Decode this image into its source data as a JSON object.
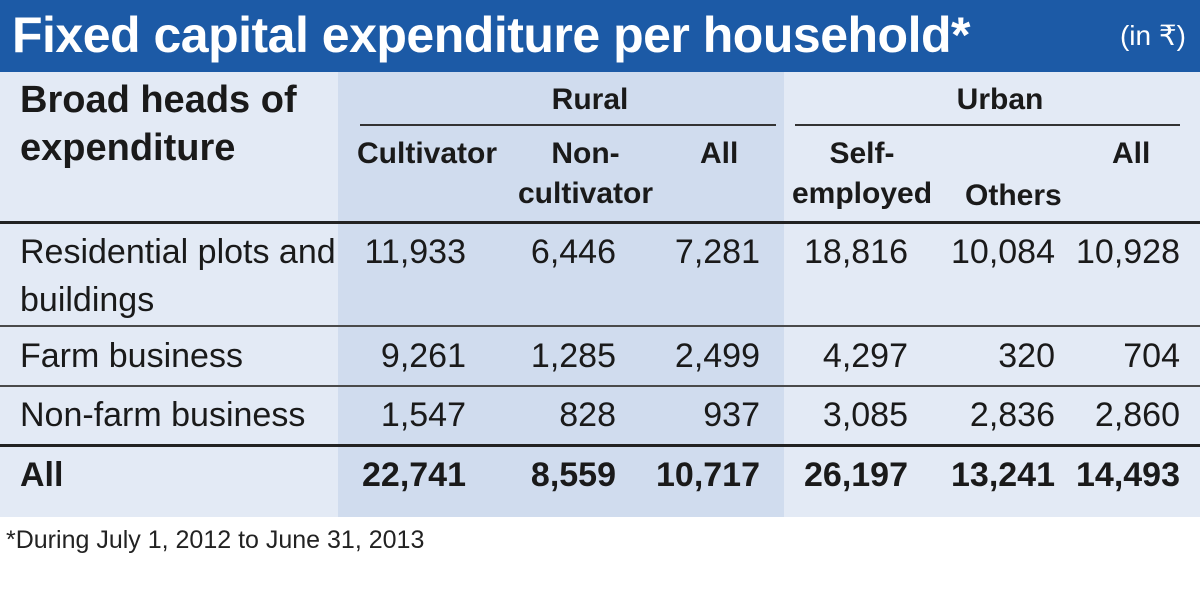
{
  "title": "Fixed capital expenditure per household*",
  "unit": "(in ₹)",
  "table": {
    "stub_header": "Broad heads of expenditure",
    "groups": [
      "Rural",
      "Urban"
    ],
    "columns": [
      "Cultivator",
      "Non-cultivator",
      "All",
      "Self-employed",
      "Others",
      "All"
    ],
    "rows": [
      {
        "label": "Residential plots and buildings",
        "values": [
          "11,933",
          "6,446",
          "7,281",
          "18,816",
          "10,084",
          "10,928"
        ]
      },
      {
        "label": "Farm business",
        "values": [
          "9,261",
          "1,285",
          "2,499",
          "4,297",
          "320",
          "704"
        ]
      },
      {
        "label": "Non-farm business",
        "values": [
          "1,547",
          "828",
          "937",
          "3,085",
          "2,836",
          "2,860"
        ]
      },
      {
        "label": "All",
        "values": [
          "22,741",
          "8,559",
          "10,717",
          "26,197",
          "13,241",
          "14,493"
        ]
      }
    ]
  },
  "footnote": "*During July 1, 2012 to June 31, 2013",
  "colors": {
    "banner": "#1c5aa6",
    "table_bg": "#e3eaf5",
    "rural_band": "#d0dcee"
  }
}
